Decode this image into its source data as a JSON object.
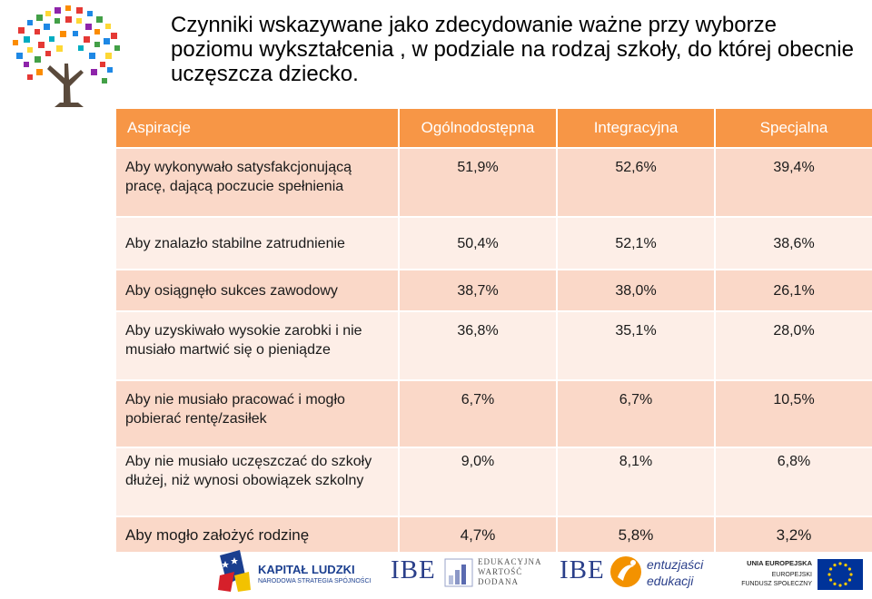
{
  "title": "Czynniki wskazywane jako zdecydowanie ważne przy wyborze poziomu wykształcenia , w podziale na rodzaj szkoły, do której obecnie uczęszcza dziecko.",
  "table": {
    "headers": [
      "Aspiracje",
      "Ogólnodostępna",
      "Integracyjna",
      "Specjalna"
    ],
    "rows": [
      {
        "label": "Aby wykonywało satysfakcjonującą pracę, dającą poczucie spełnienia",
        "values": [
          "51,9%",
          "52,6%",
          "39,4%"
        ]
      },
      {
        "label": "Aby znalazło stabilne zatrudnienie",
        "values": [
          "50,4%",
          "52,1%",
          "38,6%"
        ]
      },
      {
        "label": "Aby osiągnęło sukces zawodowy",
        "values": [
          "38,7%",
          "38,0%",
          "26,1%"
        ]
      },
      {
        "label": "Aby uzyskiwało wysokie zarobki i nie musiało martwić się o pieniądze",
        "values": [
          "36,8%",
          "35,1%",
          "28,0%"
        ]
      },
      {
        "label": "Aby nie musiało pracować i mogło pobierać rentę/zasiłek",
        "values": [
          "6,7%",
          "6,7%",
          "10,5%"
        ]
      },
      {
        "label": "Aby nie musiało uczęszczać do szkoły dłużej, niż wynosi obowiązek szkolny",
        "values": [
          "9,0%",
          "8,1%",
          "6,8%"
        ]
      },
      {
        "label": "Aby mogło założyć rodzinę",
        "values": [
          "4,7%",
          "5,8%",
          "3,2%"
        ]
      }
    ]
  },
  "footer": {
    "kapital_line1": "KAPITAŁ LUDZKI",
    "kapital_line2": "NARODOWA STRATEGIA SPÓJNOŚCI",
    "ibe1": "IBE",
    "edukacyjna": [
      "EDUKACYJNA",
      "WARTOŚĆ",
      "DODANA"
    ],
    "ibe2": "IBE",
    "entuzjasci": [
      "entuzjaści",
      "edukacji"
    ],
    "ue": [
      "UNIA EUROPEJSKA",
      "EUROPEJSKI",
      "FUNDUSZ SPOŁECZNY"
    ]
  },
  "colors": {
    "header": "#f79646",
    "row_dark": "#fad8c8",
    "row_light": "#fdeee7",
    "kapital_blue": "#1b3f8f",
    "ibe_blue": "#2a3f8a",
    "entuzjasci_orange": "#f39200",
    "eu_blue": "#003399",
    "eu_yellow": "#ffcc00"
  }
}
